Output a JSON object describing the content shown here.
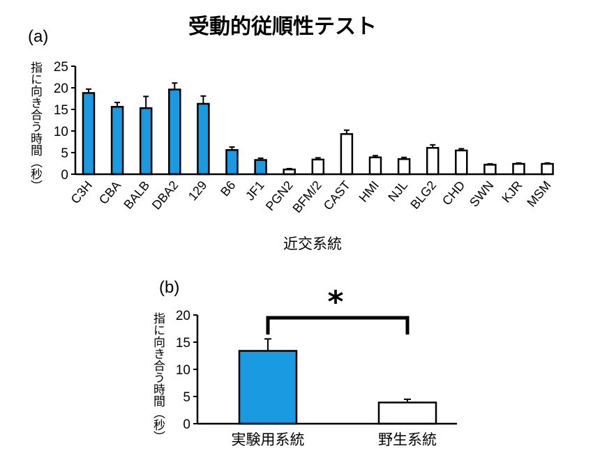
{
  "title": "受動的従順性テスト",
  "colors": {
    "highlight": "#1a9ae0",
    "plain": "#ffffff",
    "edge": "#000000"
  },
  "chart_data": [
    {
      "type": "bar",
      "panel_label": "(a)",
      "xlabel": "近交系統",
      "ylabel": "指に向き合う時間（秒）",
      "ylim": [
        0,
        25
      ],
      "yticks": [
        0,
        5,
        10,
        15,
        20,
        25
      ],
      "categories": [
        "C3H",
        "CBA",
        "BALB",
        "DBA2",
        "129",
        "B6",
        "JF1",
        "PGN2",
        "BFM/2",
        "CAST",
        "HMI",
        "NJL",
        "BLG2",
        "CHD",
        "SWN",
        "KJR",
        "MSM"
      ],
      "values": [
        18.8,
        15.6,
        15.3,
        19.6,
        16.3,
        5.6,
        3.3,
        1.1,
        3.4,
        9.3,
        3.9,
        3.5,
        6.1,
        5.5,
        2.2,
        2.4,
        2.4
      ],
      "errors": [
        0.9,
        1.0,
        2.7,
        1.5,
        1.8,
        0.7,
        0.4,
        0.2,
        0.4,
        0.9,
        0.4,
        0.4,
        0.7,
        0.4,
        0.2,
        0.2,
        0.2
      ],
      "fill": [
        "highlight",
        "highlight",
        "highlight",
        "highlight",
        "highlight",
        "highlight",
        "highlight",
        "plain",
        "plain",
        "plain",
        "plain",
        "plain",
        "plain",
        "plain",
        "plain",
        "plain",
        "plain"
      ]
    },
    {
      "type": "bar",
      "panel_label": "(b)",
      "ylabel": "指に向き合う時間（秒）",
      "ylim": [
        0,
        20
      ],
      "yticks": [
        0,
        5,
        10,
        15,
        20
      ],
      "categories": [
        "実験用系統",
        "野生系統"
      ],
      "values": [
        13.4,
        3.9
      ],
      "errors": [
        2.2,
        0.6
      ],
      "fill": [
        "highlight",
        "plain"
      ],
      "significance": "*"
    }
  ]
}
